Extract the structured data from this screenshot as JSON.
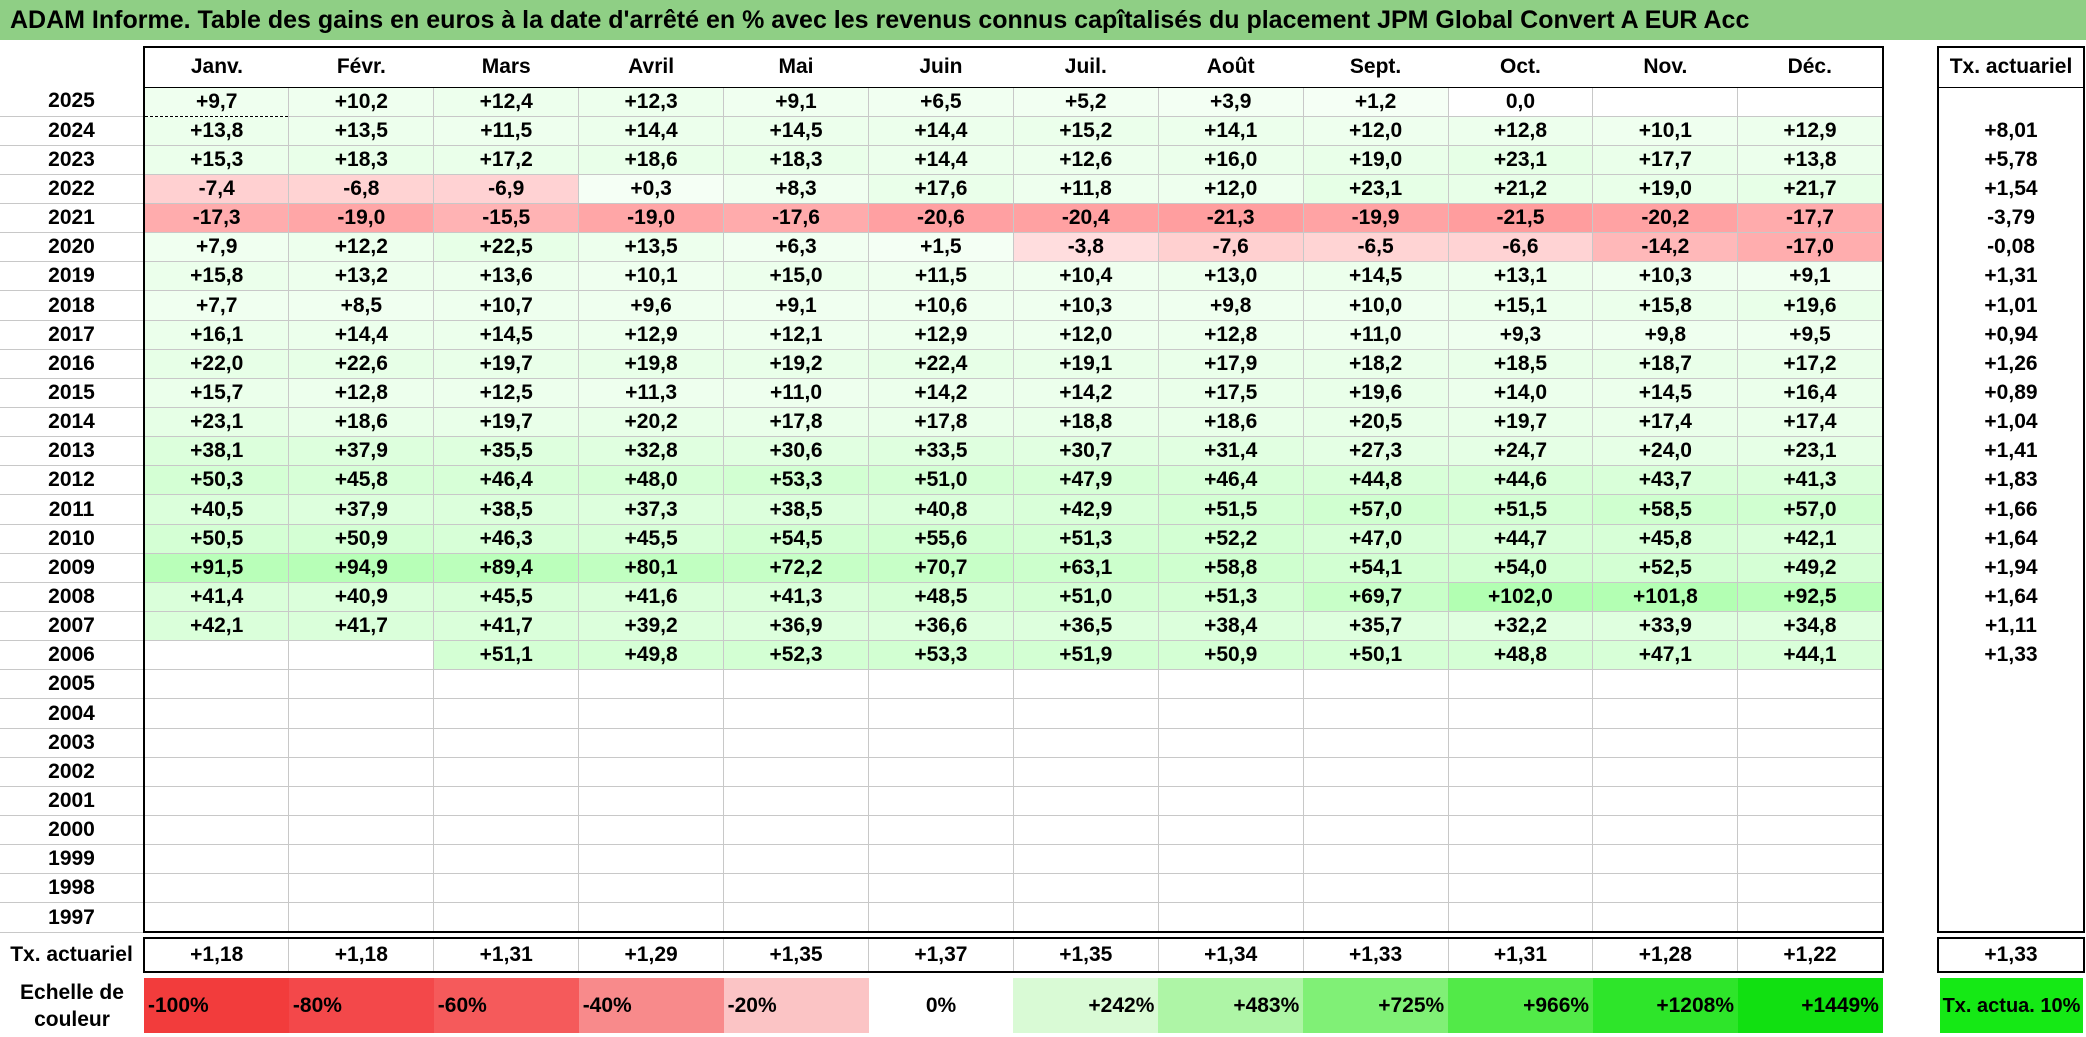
{
  "title": "ADAM Informe. Table des gains en euros à la date d'arrêté en % avec les revenus connus capîtalisés du placement JPM Global Convert A EUR Acc",
  "months": [
    "Janv.",
    "Févr.",
    "Mars",
    "Avril",
    "Mai",
    "Juin",
    "Juil.",
    "Août",
    "Sept.",
    "Oct.",
    "Nov.",
    "Déc."
  ],
  "tx_header": "Tx. actuariel",
  "rows": [
    {
      "year": "2025",
      "values": [
        "+9,7",
        "+10,2",
        "+12,4",
        "+12,3",
        "+9,1",
        "+6,5",
        "+5,2",
        "+3,9",
        "+1,2",
        "0,0",
        "",
        ""
      ],
      "tx": ""
    },
    {
      "year": "2024",
      "values": [
        "+13,8",
        "+13,5",
        "+11,5",
        "+14,4",
        "+14,5",
        "+14,4",
        "+15,2",
        "+14,1",
        "+12,0",
        "+12,8",
        "+10,1",
        "+12,9"
      ],
      "tx": "+8,01"
    },
    {
      "year": "2023",
      "values": [
        "+15,3",
        "+18,3",
        "+17,2",
        "+18,6",
        "+18,3",
        "+14,4",
        "+12,6",
        "+16,0",
        "+19,0",
        "+23,1",
        "+17,7",
        "+13,8"
      ],
      "tx": "+5,78"
    },
    {
      "year": "2022",
      "values": [
        "-7,4",
        "-6,8",
        "-6,9",
        "+0,3",
        "+8,3",
        "+17,6",
        "+11,8",
        "+12,0",
        "+23,1",
        "+21,2",
        "+19,0",
        "+21,7"
      ],
      "tx": "+1,54"
    },
    {
      "year": "2021",
      "values": [
        "-17,3",
        "-19,0",
        "-15,5",
        "-19,0",
        "-17,6",
        "-20,6",
        "-20,4",
        "-21,3",
        "-19,9",
        "-21,5",
        "-20,2",
        "-17,7"
      ],
      "tx": "-3,79"
    },
    {
      "year": "2020",
      "values": [
        "+7,9",
        "+12,2",
        "+22,5",
        "+13,5",
        "+6,3",
        "+1,5",
        "-3,8",
        "-7,6",
        "-6,5",
        "-6,6",
        "-14,2",
        "-17,0"
      ],
      "tx": "-0,08"
    },
    {
      "year": "2019",
      "values": [
        "+15,8",
        "+13,2",
        "+13,6",
        "+10,1",
        "+15,0",
        "+11,5",
        "+10,4",
        "+13,0",
        "+14,5",
        "+13,1",
        "+10,3",
        "+9,1"
      ],
      "tx": "+1,31"
    },
    {
      "year": "2018",
      "values": [
        "+7,7",
        "+8,5",
        "+10,7",
        "+9,6",
        "+9,1",
        "+10,6",
        "+10,3",
        "+9,8",
        "+10,0",
        "+15,1",
        "+15,8",
        "+19,6"
      ],
      "tx": "+1,01"
    },
    {
      "year": "2017",
      "values": [
        "+16,1",
        "+14,4",
        "+14,5",
        "+12,9",
        "+12,1",
        "+12,9",
        "+12,0",
        "+12,8",
        "+11,0",
        "+9,3",
        "+9,8",
        "+9,5"
      ],
      "tx": "+0,94"
    },
    {
      "year": "2016",
      "values": [
        "+22,0",
        "+22,6",
        "+19,7",
        "+19,8",
        "+19,2",
        "+22,4",
        "+19,1",
        "+17,9",
        "+18,2",
        "+18,5",
        "+18,7",
        "+17,2"
      ],
      "tx": "+1,26"
    },
    {
      "year": "2015",
      "values": [
        "+15,7",
        "+12,8",
        "+12,5",
        "+11,3",
        "+11,0",
        "+14,2",
        "+14,2",
        "+17,5",
        "+19,6",
        "+14,0",
        "+14,5",
        "+16,4"
      ],
      "tx": "+0,89"
    },
    {
      "year": "2014",
      "values": [
        "+23,1",
        "+18,6",
        "+19,7",
        "+20,2",
        "+17,8",
        "+17,8",
        "+18,8",
        "+18,6",
        "+20,5",
        "+19,7",
        "+17,4",
        "+17,4"
      ],
      "tx": "+1,04"
    },
    {
      "year": "2013",
      "values": [
        "+38,1",
        "+37,9",
        "+35,5",
        "+32,8",
        "+30,6",
        "+33,5",
        "+30,7",
        "+31,4",
        "+27,3",
        "+24,7",
        "+24,0",
        "+23,1"
      ],
      "tx": "+1,41"
    },
    {
      "year": "2012",
      "values": [
        "+50,3",
        "+45,8",
        "+46,4",
        "+48,0",
        "+53,3",
        "+51,0",
        "+47,9",
        "+46,4",
        "+44,8",
        "+44,6",
        "+43,7",
        "+41,3"
      ],
      "tx": "+1,83"
    },
    {
      "year": "2011",
      "values": [
        "+40,5",
        "+37,9",
        "+38,5",
        "+37,3",
        "+38,5",
        "+40,8",
        "+42,9",
        "+51,5",
        "+57,0",
        "+51,5",
        "+58,5",
        "+57,0"
      ],
      "tx": "+1,66"
    },
    {
      "year": "2010",
      "values": [
        "+50,5",
        "+50,9",
        "+46,3",
        "+45,5",
        "+54,5",
        "+55,6",
        "+51,3",
        "+52,2",
        "+47,0",
        "+44,7",
        "+45,8",
        "+42,1"
      ],
      "tx": "+1,64"
    },
    {
      "year": "2009",
      "values": [
        "+91,5",
        "+94,9",
        "+89,4",
        "+80,1",
        "+72,2",
        "+70,7",
        "+63,1",
        "+58,8",
        "+54,1",
        "+54,0",
        "+52,5",
        "+49,2"
      ],
      "tx": "+1,94"
    },
    {
      "year": "2008",
      "values": [
        "+41,4",
        "+40,9",
        "+45,5",
        "+41,6",
        "+41,3",
        "+48,5",
        "+51,0",
        "+51,3",
        "+69,7",
        "+102,0",
        "+101,8",
        "+92,5"
      ],
      "tx": "+1,64"
    },
    {
      "year": "2007",
      "values": [
        "+42,1",
        "+41,7",
        "+41,7",
        "+39,2",
        "+36,9",
        "+36,6",
        "+36,5",
        "+38,4",
        "+35,7",
        "+32,2",
        "+33,9",
        "+34,8"
      ],
      "tx": "+1,11"
    },
    {
      "year": "2006",
      "values": [
        "",
        "",
        "+51,1",
        "+49,8",
        "+52,3",
        "+53,3",
        "+51,9",
        "+50,9",
        "+50,1",
        "+48,8",
        "+47,1",
        "+44,1"
      ],
      "tx": "+1,33"
    },
    {
      "year": "2005",
      "values": [
        "",
        "",
        "",
        "",
        "",
        "",
        "",
        "",
        "",
        "",
        "",
        ""
      ],
      "tx": ""
    },
    {
      "year": "2004",
      "values": [
        "",
        "",
        "",
        "",
        "",
        "",
        "",
        "",
        "",
        "",
        "",
        ""
      ],
      "tx": ""
    },
    {
      "year": "2003",
      "values": [
        "",
        "",
        "",
        "",
        "",
        "",
        "",
        "",
        "",
        "",
        "",
        ""
      ],
      "tx": ""
    },
    {
      "year": "2002",
      "values": [
        "",
        "",
        "",
        "",
        "",
        "",
        "",
        "",
        "",
        "",
        "",
        ""
      ],
      "tx": ""
    },
    {
      "year": "2001",
      "values": [
        "",
        "",
        "",
        "",
        "",
        "",
        "",
        "",
        "",
        "",
        "",
        ""
      ],
      "tx": ""
    },
    {
      "year": "2000",
      "values": [
        "",
        "",
        "",
        "",
        "",
        "",
        "",
        "",
        "",
        "",
        "",
        ""
      ],
      "tx": ""
    },
    {
      "year": "1999",
      "values": [
        "",
        "",
        "",
        "",
        "",
        "",
        "",
        "",
        "",
        "",
        "",
        ""
      ],
      "tx": ""
    },
    {
      "year": "1998",
      "values": [
        "",
        "",
        "",
        "",
        "",
        "",
        "",
        "",
        "",
        "",
        "",
        ""
      ],
      "tx": ""
    },
    {
      "year": "1997",
      "values": [
        "",
        "",
        "",
        "",
        "",
        "",
        "",
        "",
        "",
        "",
        "",
        ""
      ],
      "tx": ""
    }
  ],
  "tx_row": {
    "label": "Tx. actuariel",
    "values": [
      "+1,18",
      "+1,18",
      "+1,31",
      "+1,29",
      "+1,35",
      "+1,37",
      "+1,35",
      "+1,34",
      "+1,33",
      "+1,31",
      "+1,28",
      "+1,22"
    ],
    "total": "+1,33"
  },
  "legend": {
    "label": "Echelle de couleur",
    "items": [
      {
        "text": "-100%",
        "color": "#f23c3c",
        "kind": "neg"
      },
      {
        "text": "-80%",
        "color": "#f3484a",
        "kind": "neg"
      },
      {
        "text": "-60%",
        "color": "#f55a5b",
        "kind": "neg"
      },
      {
        "text": "-40%",
        "color": "#f88a8b",
        "kind": "neg"
      },
      {
        "text": "-20%",
        "color": "#fbc4c5",
        "kind": "neg"
      },
      {
        "text": "0%",
        "color": "#ffffff",
        "kind": "zero"
      },
      {
        "text": "+242%",
        "color": "#d9fad5",
        "kind": "pos"
      },
      {
        "text": "+483%",
        "color": "#aef5a6",
        "kind": "pos"
      },
      {
        "text": "+725%",
        "color": "#80f076",
        "kind": "pos"
      },
      {
        "text": "+966%",
        "color": "#52ea48",
        "kind": "pos"
      },
      {
        "text": "+1208%",
        "color": "#2ee52a",
        "kind": "pos"
      },
      {
        "text": "+1449%",
        "color": "#11e011",
        "kind": "pos"
      }
    ],
    "tx_label": "Tx. actua. 10%",
    "tx_color": "#15e915"
  }
}
